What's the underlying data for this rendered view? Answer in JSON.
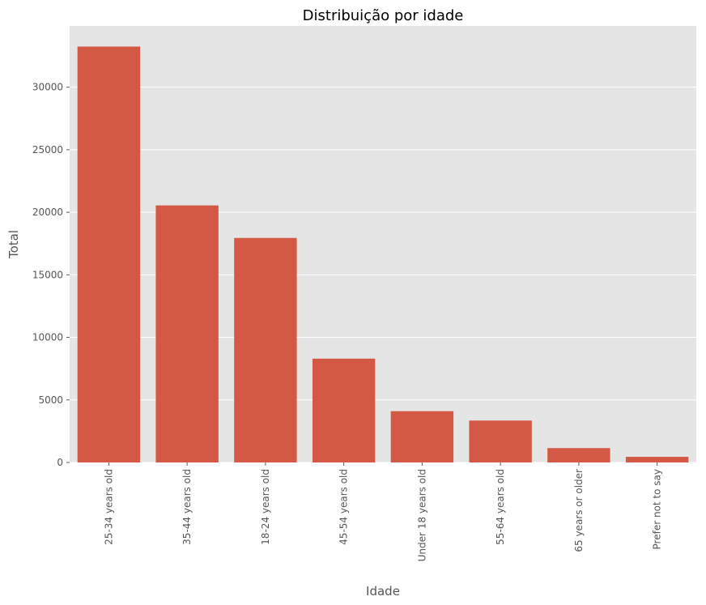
{
  "chart_data": {
    "type": "bar",
    "title": "Distribuição por idade",
    "xlabel": "Idade",
    "ylabel": "Total",
    "categories": [
      "25-34 years old",
      "35-44 years old",
      "18-24 years old",
      "45-54 years old",
      "Under 18 years old",
      "55-64 years old",
      "65 years or older",
      "Prefer not to say"
    ],
    "values": [
      33250,
      20550,
      17950,
      8300,
      4100,
      3350,
      1150,
      450
    ],
    "ylim": [
      0,
      34900
    ],
    "yticks": [
      0,
      5000,
      10000,
      15000,
      20000,
      25000,
      30000
    ],
    "ytick_labels": [
      "0",
      "5000",
      "10000",
      "15000",
      "20000",
      "25000",
      "30000"
    ],
    "grid": true,
    "colors": {
      "bar": "#d35944",
      "plot_bg": "#e5e5e5",
      "grid": "#ffffff",
      "text": "#555555"
    }
  }
}
